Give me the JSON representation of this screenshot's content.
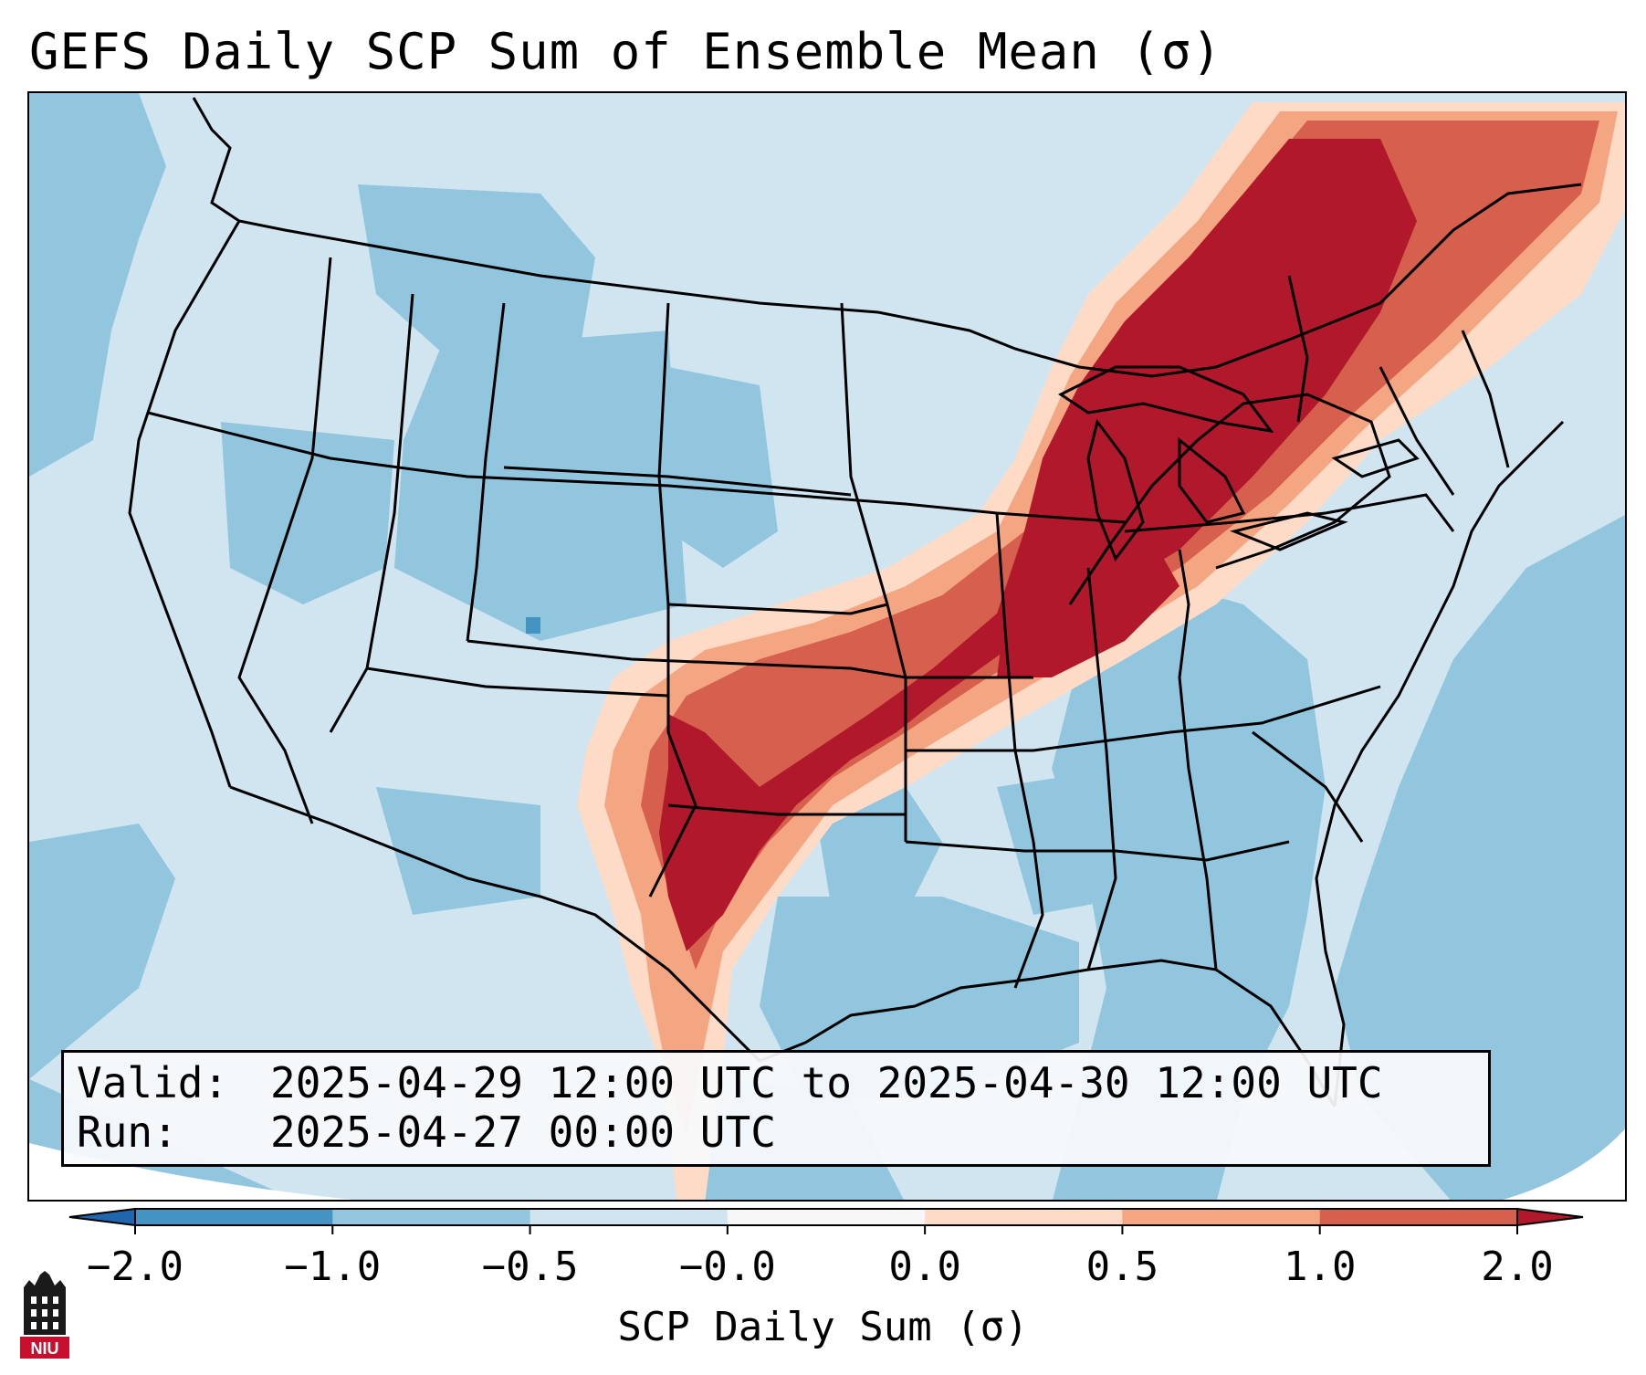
{
  "title": "GEFS Daily SCP Sum of Ensemble Mean (σ)",
  "info": {
    "valid_label": "Valid:",
    "valid_value": "2025-04-29 12:00 UTC to 2025-04-30 12:00 UTC",
    "run_label": "Run:",
    "run_value": "2025-04-27 00:00 UTC"
  },
  "colorbar": {
    "label": "SCP Daily Sum (σ)",
    "ticks": [
      "−2.0",
      "−1.0",
      "−0.5",
      "−0.0",
      "0.0",
      "0.5",
      "1.0",
      "2.0"
    ],
    "colors": [
      "#4393c3",
      "#92c5de",
      "#d1e5f0",
      "#f7f7f7",
      "#fddbc7",
      "#f4a582",
      "#d6604d"
    ],
    "under_color": "#2166ac",
    "over_color": "#b2182b"
  },
  "logo": {
    "text": "NIU",
    "color": "#c8102e"
  }
}
